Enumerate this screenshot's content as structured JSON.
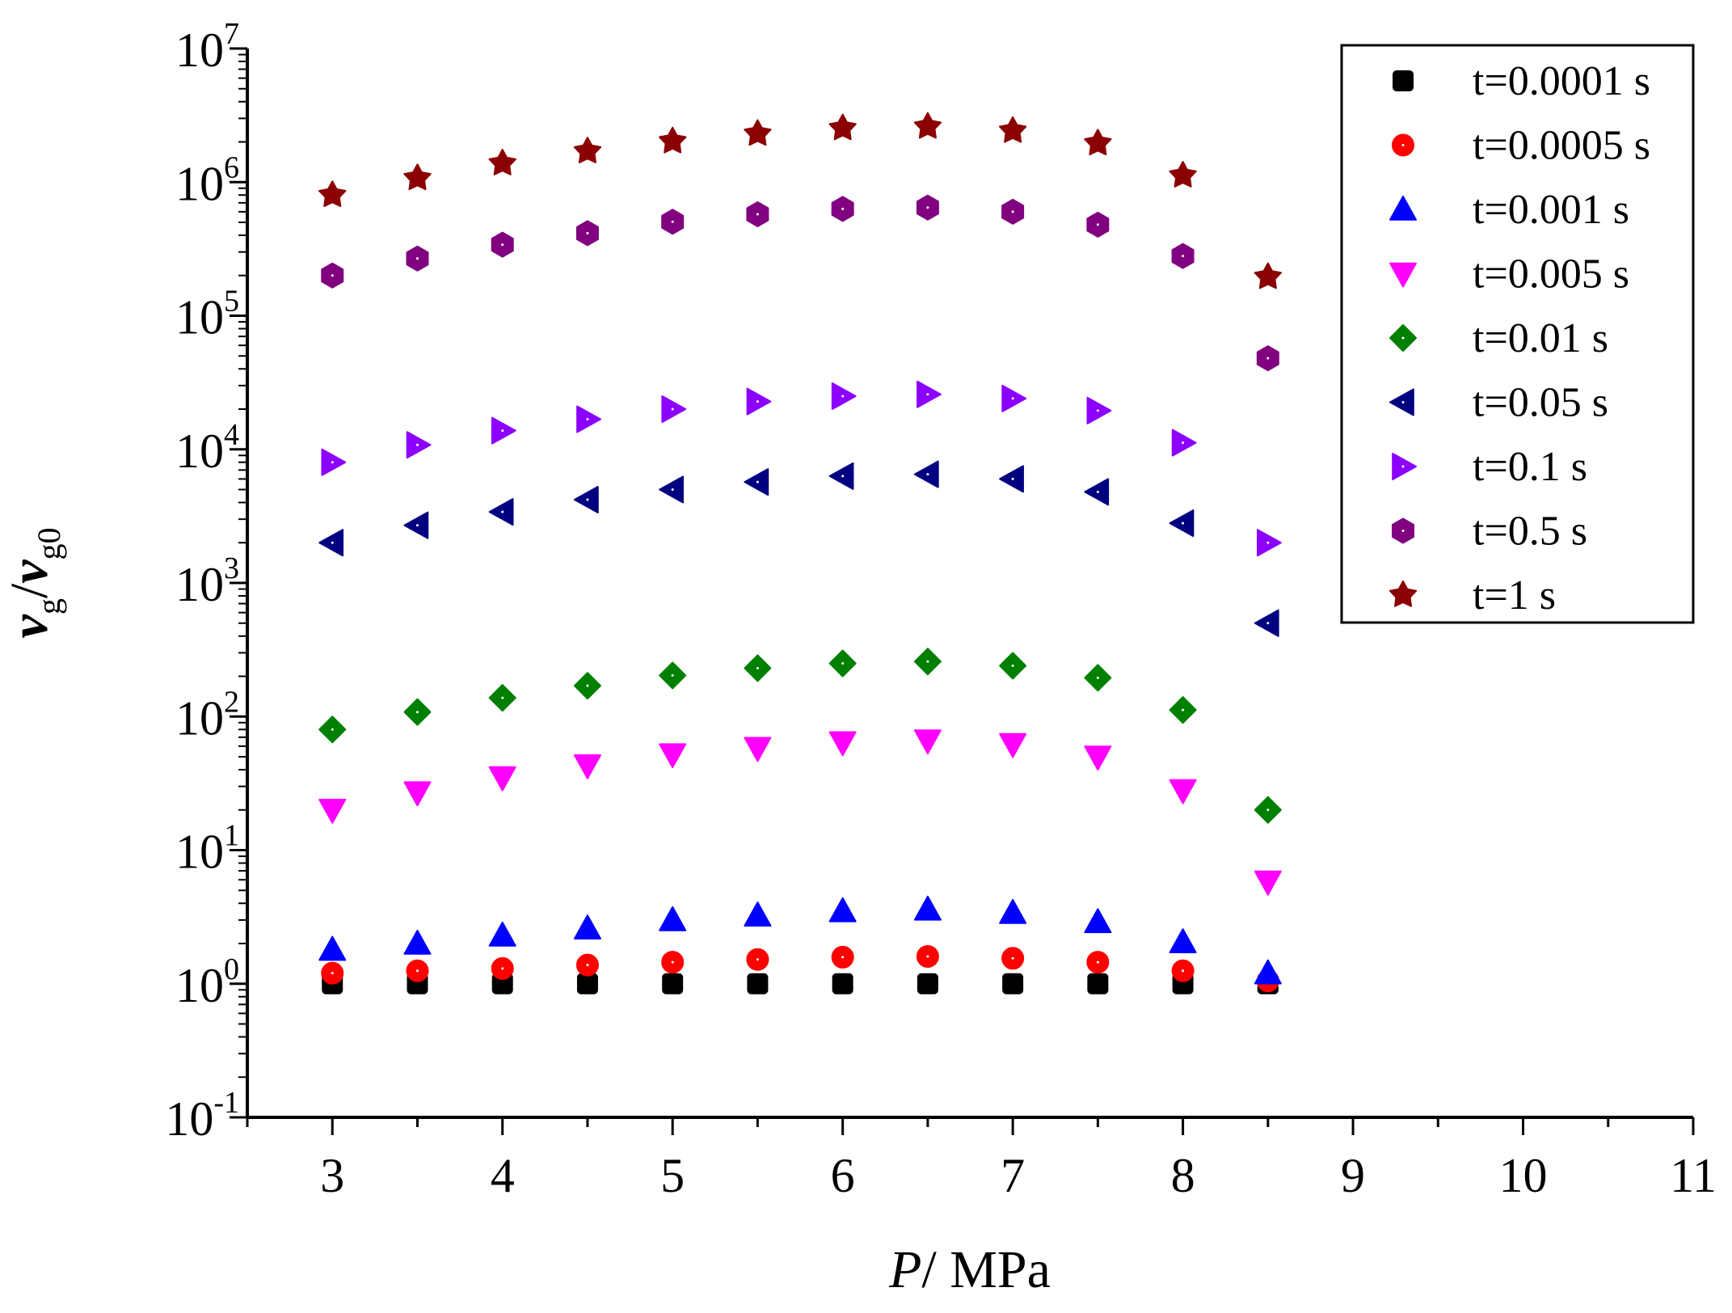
{
  "chart_data": {
    "type": "scatter",
    "title": "",
    "xlabel": {
      "var": "P",
      "rest": "/ MPa"
    },
    "ylabel": {
      "var1": "v",
      "sub1": "g",
      "slash": "/",
      "var2": "v",
      "sub2": "g0"
    },
    "xlim": [
      2.5,
      11
    ],
    "ylim_log10": [
      -1,
      7
    ],
    "y_scale": "log",
    "grid": false,
    "legend_position": "top-right",
    "x_ticks": [
      {
        "value": 3,
        "label": "3"
      },
      {
        "value": 4,
        "label": "4"
      },
      {
        "value": 5,
        "label": "5"
      },
      {
        "value": 6,
        "label": "6"
      },
      {
        "value": 7,
        "label": "7"
      },
      {
        "value": 8,
        "label": "8"
      },
      {
        "value": 9,
        "label": "9"
      },
      {
        "value": 10,
        "label": "10"
      },
      {
        "value": 11,
        "label": "11"
      }
    ],
    "y_ticks": [
      {
        "exp": -1,
        "base": "10",
        "sup": "-1"
      },
      {
        "exp": 0,
        "base": "10",
        "sup": "0"
      },
      {
        "exp": 1,
        "base": "10",
        "sup": "1"
      },
      {
        "exp": 2,
        "base": "10",
        "sup": "2"
      },
      {
        "exp": 3,
        "base": "10",
        "sup": "3"
      },
      {
        "exp": 4,
        "base": "10",
        "sup": "4"
      },
      {
        "exp": 5,
        "base": "10",
        "sup": "5"
      },
      {
        "exp": 6,
        "base": "10",
        "sup": "6"
      },
      {
        "exp": 7,
        "base": "10",
        "sup": "7"
      }
    ],
    "x": [
      3,
      3.5,
      4,
      4.5,
      5,
      5.5,
      6,
      6.5,
      7,
      7.5,
      8,
      8.5
    ],
    "series": [
      {
        "name": "t=0.0001 s",
        "marker": "square",
        "color": "#000000",
        "values": [
          1.0,
          1.0,
          1.0,
          1.0,
          1.0,
          1.0,
          1.0,
          1.0,
          1.0,
          1.0,
          1.0,
          1.0
        ]
      },
      {
        "name": "t=0.0005 s",
        "marker": "circle",
        "color": "#ff0000",
        "values": [
          1.2,
          1.25,
          1.3,
          1.38,
          1.45,
          1.52,
          1.58,
          1.6,
          1.55,
          1.45,
          1.25,
          1.05
        ]
      },
      {
        "name": "t=0.001 s",
        "marker": "triangle-up",
        "color": "#0000ff",
        "values": [
          1.8,
          2.0,
          2.3,
          2.6,
          3.0,
          3.25,
          3.5,
          3.6,
          3.4,
          2.9,
          2.05,
          1.2
        ]
      },
      {
        "name": "t=0.005 s",
        "marker": "triangle-down",
        "color": "#ff00ff",
        "values": [
          20,
          27,
          35,
          43,
          52,
          58,
          64,
          66,
          62,
          50,
          28,
          5.8
        ]
      },
      {
        "name": "t=0.01 s",
        "marker": "diamond",
        "color": "#008000",
        "values": [
          80,
          108,
          138,
          170,
          203,
          230,
          250,
          258,
          240,
          195,
          112,
          20
        ]
      },
      {
        "name": "t=0.05 s",
        "marker": "triangle-left",
        "color": "#000080",
        "values": [
          2000,
          2700,
          3400,
          4200,
          5000,
          5700,
          6300,
          6500,
          6000,
          4800,
          2800,
          500
        ]
      },
      {
        "name": "t=0.1 s",
        "marker": "triangle-right",
        "color": "#8b00ff",
        "values": [
          8000,
          10800,
          13800,
          16800,
          20000,
          22800,
          25000,
          25800,
          24000,
          19500,
          11200,
          2000
        ]
      },
      {
        "name": "t=0.5 s",
        "marker": "hexagon",
        "color": "#800080",
        "values": [
          200000,
          268000,
          340000,
          415000,
          505000,
          575000,
          630000,
          645000,
          600000,
          480000,
          280000,
          48000
        ]
      },
      {
        "name": "t=1 s",
        "marker": "star",
        "color": "#8b0000",
        "values": [
          800000,
          1070000,
          1380000,
          1700000,
          2020000,
          2300000,
          2530000,
          2600000,
          2420000,
          1950000,
          1120000,
          195000
        ]
      }
    ]
  }
}
